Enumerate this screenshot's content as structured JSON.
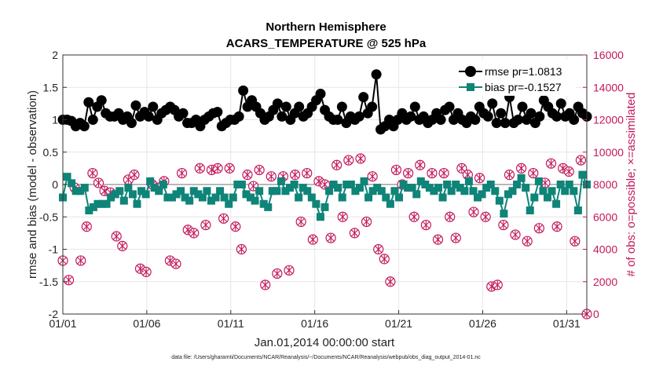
{
  "chart_data": {
    "type": "line",
    "title": "Northern Hemisphere",
    "subtitle": "ACARS_TEMPERATURE @ 525 hPa",
    "xlabel": "Jan.01,2014 00:00:00 start",
    "ylabel": "rmse and bias (model - observation)",
    "ylabel_right": "# of obs: o=possible; ×=assimilated",
    "footnote": "data file: /Users/gharamti/Documents/NCAR/Reanalysis/~/Documents/NCAR/Reanalysis/webpub/obs_diag_output_2014-01.nc",
    "xlim": [
      1,
      32.2
    ],
    "ylim": [
      -2,
      2
    ],
    "ylim_right": [
      0,
      16000
    ],
    "x_ticks": [
      1,
      6,
      11,
      16,
      21,
      26,
      31
    ],
    "x_tick_labels": [
      "01/01",
      "01/06",
      "01/11",
      "01/16",
      "01/21",
      "01/26",
      "01/31"
    ],
    "y_ticks": [
      -2,
      -1.5,
      -1,
      -0.5,
      0,
      0.5,
      1,
      1.5,
      2
    ],
    "y_tick_labels": [
      "-2",
      "-1.5",
      "-1",
      "-0.5",
      "0",
      "0.5",
      "1",
      "1.5",
      "2"
    ],
    "y_ticks_right": [
      0,
      2000,
      4000,
      6000,
      8000,
      10000,
      12000,
      14000,
      16000
    ],
    "y_tick_labels_right": [
      "0",
      "2000",
      "4000",
      "6000",
      "8000",
      "10000",
      "12000",
      "14000",
      "16000"
    ],
    "grid": true,
    "legend_position": "top-right",
    "series": [
      {
        "name": "rmse pr=1.0813",
        "axis": "left",
        "color": "#000000",
        "marker": "circle",
        "values": [
          1.0,
          1.0,
          0.98,
          0.9,
          0.95,
          0.9,
          1.27,
          1.0,
          1.2,
          1.3,
          1.1,
          1.05,
          1.05,
          1.1,
          1.0,
          1.05,
          0.95,
          1.22,
          1.05,
          1.12,
          1.05,
          1.2,
          1.0,
          1.1,
          1.15,
          1.2,
          1.15,
          1.05,
          1.1,
          0.95,
          0.95,
          1.0,
          0.9,
          1.0,
          1.05,
          1.1,
          1.12,
          0.9,
          0.95,
          1.0,
          1.0,
          1.05,
          1.45,
          1.2,
          1.3,
          1.2,
          1.1,
          1.0,
          1.05,
          1.15,
          1.25,
          1.05,
          1.2,
          1.0,
          1.1,
          1.2,
          1.05,
          1.1,
          1.2,
          1.3,
          1.4,
          1.15,
          1.05,
          1.0,
          1.0,
          1.2,
          0.95,
          1.05,
          1.0,
          1.05,
          1.35,
          1.1,
          1.2,
          1.7,
          0.85,
          0.9,
          1.0,
          0.9,
          1.0,
          1.1,
          1.0,
          1.05,
          1.2,
          1.0,
          1.05,
          0.95,
          1.0,
          1.1,
          1.0,
          1.15,
          1.2,
          1.0,
          1.1,
          1.0,
          0.95,
          1.05,
          1.0,
          1.2,
          1.1,
          1.05,
          1.25,
          0.95,
          1.1,
          0.95,
          1.35,
          0.95,
          1.0,
          1.2,
          1.0,
          1.1,
          0.95,
          1.05,
          1.3,
          1.2,
          1.1,
          1.05,
          1.25,
          1.05,
          1.1,
          1.0,
          1.2,
          1.1,
          1.05
        ]
      },
      {
        "name": "bias pr=-0.1527",
        "axis": "left",
        "color": "#0f8478",
        "marker": "square",
        "values": [
          -0.2,
          0.12,
          0.02,
          -0.1,
          -0.1,
          -0.05,
          -0.4,
          -0.35,
          -0.3,
          -0.3,
          -0.3,
          -0.2,
          -0.15,
          -0.1,
          -0.25,
          -0.05,
          -0.15,
          -0.3,
          -0.1,
          -0.15,
          0.05,
          -0.05,
          -0.1,
          0.0,
          -0.2,
          -0.2,
          -0.15,
          -0.1,
          -0.2,
          -0.25,
          -0.1,
          -0.15,
          -0.2,
          -0.1,
          -0.25,
          -0.2,
          -0.1,
          -0.2,
          -0.3,
          -0.2,
          0.0,
          0.0,
          -0.15,
          -0.2,
          -0.25,
          -0.1,
          -0.3,
          -0.35,
          -0.1,
          -0.1,
          0.05,
          -0.1,
          -0.05,
          0.0,
          -0.2,
          -0.05,
          -0.1,
          -0.2,
          -0.3,
          -0.5,
          -0.35,
          -0.1,
          0.0,
          -0.05,
          -0.2,
          0.0,
          0.0,
          -0.1,
          -0.05,
          0.05,
          -0.2,
          -0.1,
          -0.05,
          -0.1,
          -0.2,
          -0.3,
          -0.1,
          -0.2,
          0.0,
          -0.05,
          -0.05,
          -0.15,
          0.05,
          0.0,
          -0.05,
          -0.1,
          -0.05,
          -0.2,
          0.0,
          -0.1,
          0.0,
          -0.05,
          -0.1,
          0.05,
          -0.1,
          -0.2,
          -0.15,
          -0.05,
          0.0,
          -0.1,
          -0.25,
          -0.45,
          -0.15,
          -0.1,
          0.0,
          0.1,
          -0.05,
          -0.4,
          -0.2,
          0.05,
          -0.1,
          -0.2,
          -0.1,
          -0.3,
          0.0,
          -0.1,
          0.0,
          -0.1,
          -0.4,
          0.15,
          0.0
        ]
      },
      {
        "name": "possible",
        "axis": "right",
        "color": "#c2185b",
        "marker": "open-circle",
        "values": [
          3300,
          2100,
          7800,
          3300,
          5400,
          8700,
          8100,
          7600,
          7500,
          4800,
          4200,
          8300,
          8600,
          2800,
          2600,
          8000,
          7800,
          8200,
          3300,
          3100,
          8700,
          5200,
          5000,
          9000,
          5500,
          8900,
          9000,
          5900,
          9000,
          5400,
          4000,
          8600,
          7900,
          8900,
          1800,
          8500,
          2500,
          8500,
          2700,
          8600,
          5700,
          8700,
          4600,
          8200,
          8000,
          4700,
          9200,
          6000,
          9500,
          5000,
          9600,
          5700,
          8500,
          4000,
          3400,
          2000,
          8900,
          8000,
          8700,
          6000,
          9200,
          5500,
          8700,
          4600,
          8700,
          6000,
          4700,
          9000,
          8600,
          6300,
          8400,
          6000,
          1700,
          1800,
          5500,
          8600,
          4900,
          9000,
          4500,
          8700,
          5300,
          8100,
          9300,
          5400,
          9000,
          8800,
          4500,
          9500,
          0
        ]
      },
      {
        "name": "assimilated",
        "axis": "right",
        "color": "#c2185b",
        "marker": "x",
        "values": [
          3300,
          2100,
          7800,
          3300,
          5400,
          8700,
          8100,
          7600,
          7500,
          4800,
          4200,
          8300,
          8600,
          2800,
          2600,
          8000,
          7800,
          8200,
          3300,
          3100,
          8700,
          5200,
          5000,
          9000,
          5500,
          8900,
          9000,
          5900,
          9000,
          5400,
          4000,
          8600,
          7900,
          8900,
          1800,
          8500,
          2500,
          8500,
          2700,
          8600,
          5700,
          8700,
          4600,
          8200,
          8000,
          4700,
          9200,
          6000,
          9500,
          5000,
          9600,
          5700,
          8500,
          4000,
          3400,
          2000,
          8900,
          8000,
          8700,
          6000,
          9200,
          5500,
          8700,
          4600,
          8700,
          6000,
          4700,
          9000,
          8600,
          6300,
          8400,
          6000,
          1700,
          1800,
          5500,
          8600,
          4900,
          9000,
          4500,
          8700,
          5300,
          8100,
          9300,
          5400,
          9000,
          8800,
          4500,
          9500,
          0
        ]
      }
    ]
  }
}
